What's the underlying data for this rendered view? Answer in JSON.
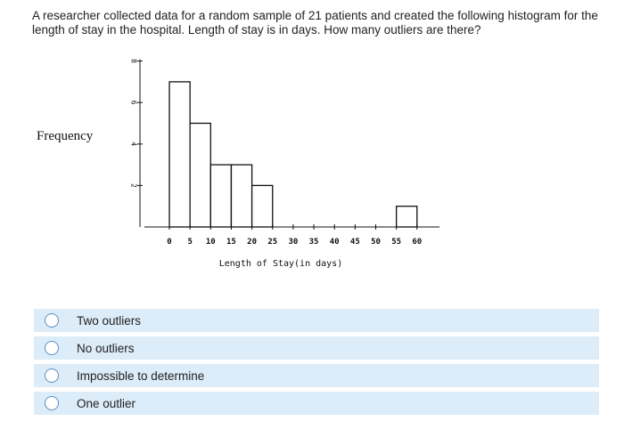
{
  "question": {
    "text": "A researcher collected data for a random sample of 21 patients and created the following histogram for the length of stay in the hospital. Length of stay is in days. How many outliers are there?"
  },
  "chart_data": {
    "type": "bar",
    "histogram": true,
    "ylabel": "Frequency",
    "xlabel": "Length of Stay(in days)",
    "ylim": [
      0,
      8
    ],
    "y_ticks": [
      2,
      4,
      6,
      8
    ],
    "x_ticks": [
      0,
      5,
      10,
      15,
      20,
      25,
      30,
      35,
      40,
      45,
      50,
      55,
      60
    ],
    "bins": [
      {
        "start": 0,
        "end": 5,
        "value": 7
      },
      {
        "start": 5,
        "end": 10,
        "value": 5
      },
      {
        "start": 10,
        "end": 15,
        "value": 3
      },
      {
        "start": 15,
        "end": 20,
        "value": 3
      },
      {
        "start": 20,
        "end": 25,
        "value": 2
      },
      {
        "start": 25,
        "end": 30,
        "value": 0
      },
      {
        "start": 30,
        "end": 35,
        "value": 0
      },
      {
        "start": 35,
        "end": 40,
        "value": 0
      },
      {
        "start": 40,
        "end": 45,
        "value": 0
      },
      {
        "start": 45,
        "end": 50,
        "value": 0
      },
      {
        "start": 50,
        "end": 55,
        "value": 0
      },
      {
        "start": 55,
        "end": 60,
        "value": 1
      }
    ],
    "grid": false
  },
  "options": [
    {
      "label": "Two outliers"
    },
    {
      "label": "No outliers"
    },
    {
      "label": "Impossible to determine"
    },
    {
      "label": "One outlier"
    }
  ],
  "colors": {
    "option_background": "#dcecf8",
    "radio_border": "#5a8fc0"
  }
}
